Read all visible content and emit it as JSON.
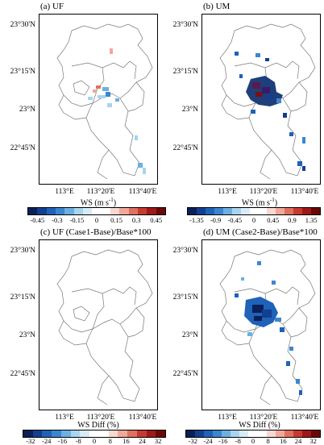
{
  "panels": {
    "a": {
      "title": "(a) UF",
      "cb_title": "WS (m s",
      "cb_title_sup": "-1",
      "cb_title_tail": ")",
      "ticks": [
        "-0.45",
        "-0.3",
        "-0.15",
        "0",
        "0.15",
        "0.3",
        "0.45"
      ]
    },
    "b": {
      "title": "(b) UM",
      "cb_title": "WS (m s",
      "cb_title_sup": "-1",
      "cb_title_tail": ")",
      "ticks": [
        "-1.35",
        "-0.9",
        "-0.45",
        "0",
        "0.45",
        "0.9",
        "1.35"
      ]
    },
    "c": {
      "title": "(c) UF (Case1-Base)/Base*100",
      "cb_title": "WS Diff (%)",
      "ticks": [
        "-32",
        "-24",
        "-16",
        "-8",
        "0",
        "8",
        "16",
        "24",
        "32"
      ]
    },
    "d": {
      "title": "(d) UM (Case2-Base)/Base*100",
      "cb_title": "WS Diff (%)",
      "ticks": [
        "-32",
        "-24",
        "-16",
        "-8",
        "0",
        "8",
        "16",
        "24",
        "32"
      ]
    }
  },
  "lat_labels": [
    "23°30'N",
    "23°15'N",
    "23°N",
    "22°45'N"
  ],
  "lon_labels": [
    "113°E",
    "113°20'E",
    "113°40'E"
  ],
  "colorbar_colors": [
    "#0b1f5a",
    "#123f8f",
    "#1f62b8",
    "#3b86d0",
    "#6cb0e2",
    "#a8d4ef",
    "#d8ecf7",
    "#ffffff",
    "#ffffff",
    "#f8d8d0",
    "#f0a898",
    "#e07060",
    "#c83a30",
    "#a01818",
    "#6a0808"
  ]
}
